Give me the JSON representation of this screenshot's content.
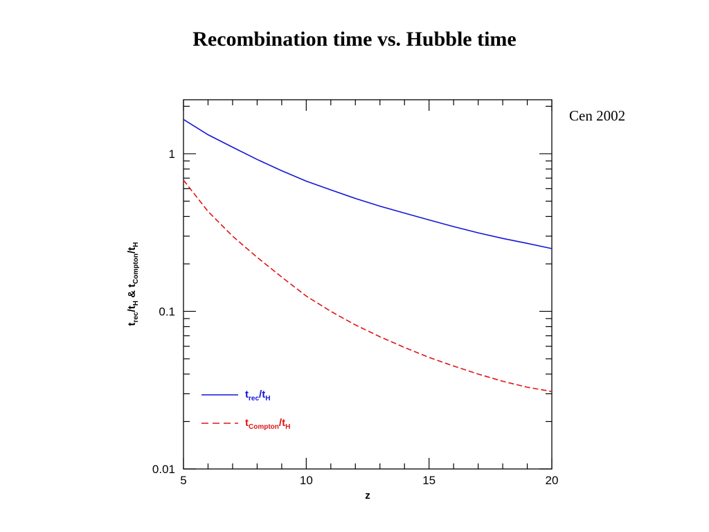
{
  "slide": {
    "title": "Recombination time vs. Hubble time",
    "citation": "Cen 2002"
  },
  "chart_data": {
    "type": "line",
    "title": "",
    "xlabel": "z",
    "ylabel": {
      "t1": "t",
      "s1": "rec",
      "slash1": "/",
      "t2": "t",
      "s2": "H",
      "amp": " & ",
      "t3": "t",
      "s3": "Compton",
      "slash2": "/",
      "t4": "t",
      "s4": "H"
    },
    "xlim": [
      5,
      20
    ],
    "ylim": [
      0.01,
      2.2
    ],
    "y_scale": "log",
    "x_ticks": [
      5,
      10,
      15,
      20
    ],
    "x_tick_labels": [
      "5",
      "10",
      "15",
      "20"
    ],
    "y_ticks": [
      0.01,
      0.1,
      1
    ],
    "y_tick_labels": [
      "0.01",
      "0.1",
      "1"
    ],
    "grid": false,
    "legend_position": "lower-left",
    "series": [
      {
        "legend": {
          "t": "t",
          "sub1": "rec",
          "slash": "/",
          "t2": "t",
          "sub2": "H"
        },
        "color": "#1414d8",
        "style": "solid",
        "x": [
          5,
          6,
          7,
          8,
          9,
          10,
          11,
          12,
          13,
          14,
          15,
          16,
          17,
          18,
          19,
          20
        ],
        "y": [
          1.65,
          1.32,
          1.1,
          0.92,
          0.78,
          0.67,
          0.59,
          0.52,
          0.465,
          0.42,
          0.38,
          0.345,
          0.315,
          0.29,
          0.27,
          0.25
        ]
      },
      {
        "legend": {
          "t": "t",
          "sub1": "Compton",
          "slash": "/",
          "t2": "t",
          "sub2": "H"
        },
        "color": "#e01414",
        "style": "dashed",
        "x": [
          5,
          6,
          7,
          8,
          9,
          10,
          11,
          12,
          13,
          14,
          15,
          16,
          17,
          18,
          19,
          20
        ],
        "y": [
          0.68,
          0.43,
          0.3,
          0.22,
          0.165,
          0.125,
          0.1,
          0.082,
          0.069,
          0.059,
          0.051,
          0.045,
          0.04,
          0.036,
          0.033,
          0.031
        ]
      }
    ]
  }
}
